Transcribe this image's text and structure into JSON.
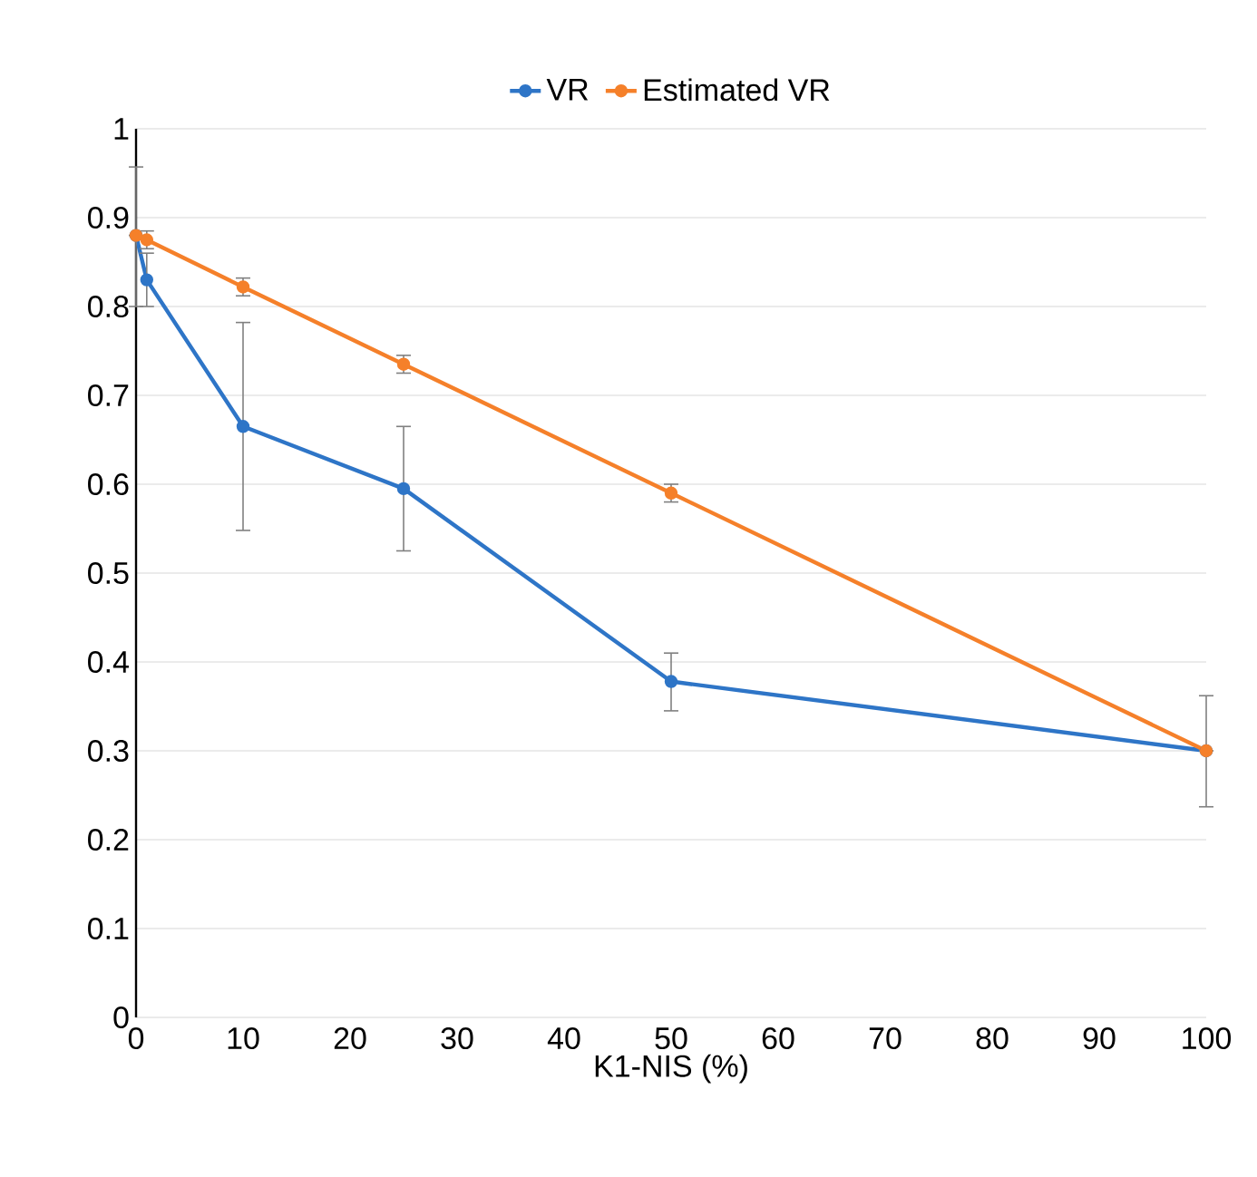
{
  "chart_data": {
    "type": "line",
    "xlabel": "K1-NIS (%)",
    "x": [
      0,
      1,
      10,
      25,
      50,
      100
    ],
    "series": [
      {
        "name": "VR",
        "color": "#2e75c7",
        "values": [
          0.88,
          0.83,
          0.665,
          0.595,
          0.378,
          0.3
        ],
        "errors": [
          [
            0.8,
            0.957
          ],
          [
            0.8,
            0.86
          ],
          [
            0.548,
            0.782
          ],
          [
            0.525,
            0.665
          ],
          [
            0.345,
            0.41
          ],
          [
            0.237,
            0.362
          ]
        ]
      },
      {
        "name": "Estimated VR",
        "color": "#f5802a",
        "values": [
          0.88,
          0.875,
          0.822,
          0.735,
          0.59,
          0.3
        ],
        "errors": [
          null,
          [
            0.865,
            0.885
          ],
          [
            0.812,
            0.832
          ],
          [
            0.725,
            0.745
          ],
          [
            0.58,
            0.6
          ],
          null
        ]
      }
    ],
    "xlim": [
      0,
      100
    ],
    "xticks": [
      0,
      10,
      20,
      30,
      40,
      50,
      60,
      70,
      80,
      90,
      100
    ],
    "ylim": [
      0,
      1
    ],
    "yticks": [
      0,
      0.1,
      0.2,
      0.3,
      0.4,
      0.5,
      0.6,
      0.7,
      0.8,
      0.9,
      1
    ],
    "grid": "y",
    "legend": "top",
    "marker": "circle",
    "line_style": "solid"
  }
}
